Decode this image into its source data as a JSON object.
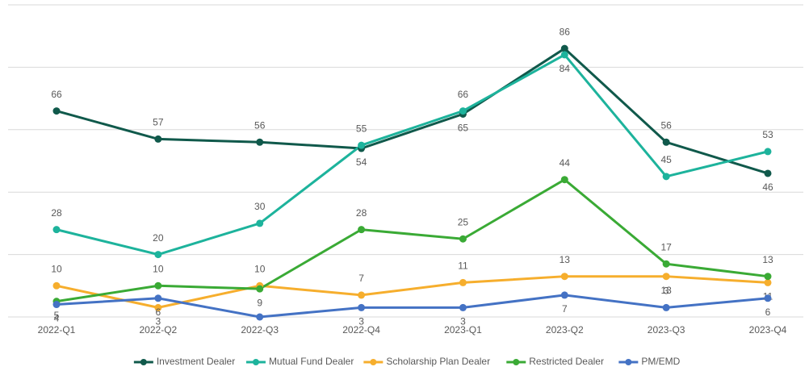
{
  "chart_data": {
    "type": "line",
    "categories": [
      "2022-Q1",
      "2022-Q2",
      "2022-Q3",
      "2022-Q4",
      "2023-Q1",
      "2023-Q2",
      "2023-Q3",
      "2023-Q4"
    ],
    "series": [
      {
        "name": "Investment Dealer",
        "color": "#10594b",
        "values": [
          66,
          57,
          56,
          54,
          65,
          86,
          56,
          46
        ]
      },
      {
        "name": "Mutual Fund Dealer",
        "color": "#1db39c",
        "values": [
          28,
          20,
          30,
          55,
          66,
          84,
          45,
          53
        ]
      },
      {
        "name": "Scholarship Plan Dealer",
        "color": "#f6ae2d",
        "values": [
          10,
          3,
          10,
          7,
          11,
          13,
          13,
          11
        ]
      },
      {
        "name": "Restricted Dealer",
        "color": "#3aaa35",
        "values": [
          5,
          10,
          9,
          28,
          25,
          44,
          17,
          13
        ]
      },
      {
        "name": "PM/EMD",
        "color": "#4472c4",
        "values": [
          4,
          6,
          0,
          3,
          3,
          7,
          3,
          6
        ],
        "value_labels": [
          "4",
          "6",
          null,
          "3",
          "3",
          "7",
          "3",
          "6"
        ]
      }
    ],
    "ylim": [
      0,
      100
    ],
    "yticks": [
      0,
      20,
      40,
      60,
      80,
      100
    ],
    "grid": true,
    "legend": "bottom"
  }
}
